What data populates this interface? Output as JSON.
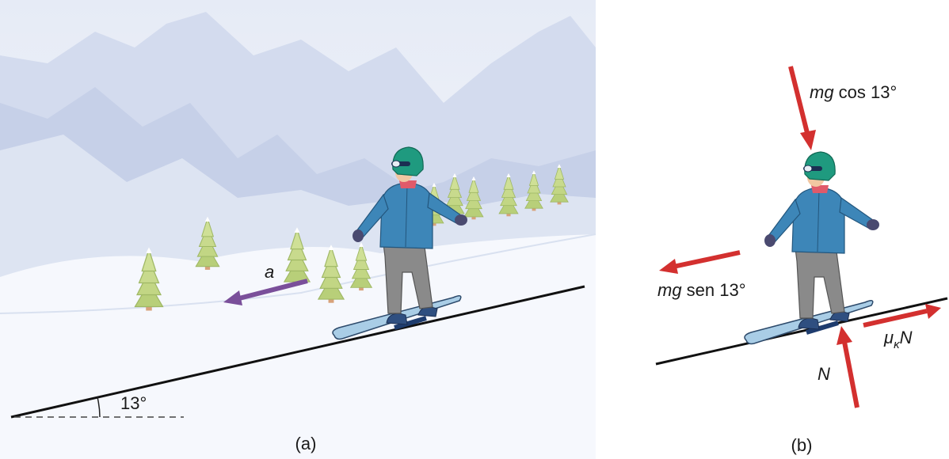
{
  "panel_a": {
    "caption": "(a)",
    "angle_label": "13°",
    "accel_label": "a"
  },
  "panel_b": {
    "caption": "(b)",
    "force_gravity_perp": {
      "italic": "mg",
      "rest": " cos 13°"
    },
    "force_gravity_par": {
      "italic": "mg",
      "rest": " sen 13°"
    },
    "force_normal": "N",
    "force_friction": {
      "mu": "μ",
      "sub": "κ",
      "n": "N"
    }
  },
  "colors": {
    "force_arrow": "#d3302f",
    "accel_arrow": "#7a4f9a",
    "sky": "#e9edf7",
    "mountain_far": "#d3dbee",
    "mountain_near": "#c6d0e8",
    "snow": "#f6f8fd",
    "jacket": "#3d86b8",
    "helmet": "#1f9a7f",
    "pants": "#8a8a8a",
    "board": "#a9cde6",
    "tree": "#b8cf79",
    "trunk": "#d8a27a"
  },
  "icons": [
    "snowboarder-figure",
    "pine-tree-icon",
    "mountain-range"
  ]
}
